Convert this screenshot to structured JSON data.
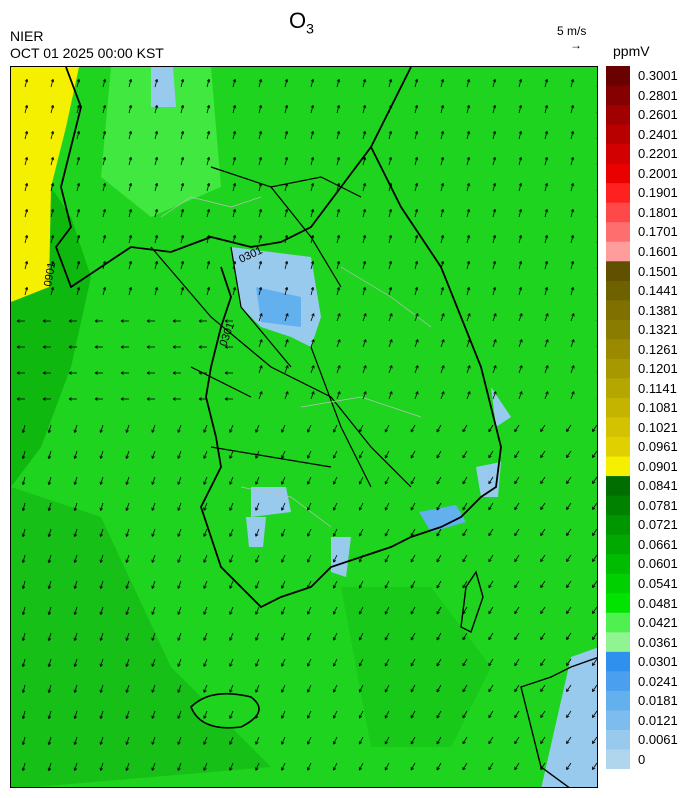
{
  "header": {
    "title_main": "O",
    "title_sub": "3",
    "agency": "NIER",
    "datetime": "OCT 01 2025 00:00 KST",
    "wind_reference": "5 m/s",
    "unit": "ppmV"
  },
  "contour_labels": [
    "0901",
    "0301",
    "0301"
  ],
  "legend": {
    "labels": [
      "0.3001",
      "0.2801",
      "0.2601",
      "0.2401",
      "0.2201",
      "0.2001",
      "0.1901",
      "0.1801",
      "0.1701",
      "0.1601",
      "0.1501",
      "0.1441",
      "0.1381",
      "0.1321",
      "0.1261",
      "0.1201",
      "0.1141",
      "0.1081",
      "0.1021",
      "0.0961",
      "0.0901",
      "0.0841",
      "0.0781",
      "0.0721",
      "0.0661",
      "0.0601",
      "0.0541",
      "0.0481",
      "0.0421",
      "0.0361",
      "0.0301",
      "0.0241",
      "0.0181",
      "0.0121",
      "0.0061",
      "0"
    ],
    "colors": [
      "#6b0000",
      "#850000",
      "#a00000",
      "#b80000",
      "#d20000",
      "#eb0000",
      "#ff2020",
      "#ff4848",
      "#ff6e6e",
      "#ff9c9c",
      "#605000",
      "#6e6200",
      "#807000",
      "#8a7c00",
      "#9a8a00",
      "#a89800",
      "#b6a600",
      "#c4b400",
      "#d2c200",
      "#e0d000",
      "#f5f000",
      "#006e00",
      "#008200",
      "#009600",
      "#00a800",
      "#00bc00",
      "#00d000",
      "#00e400",
      "#50f050",
      "#90f490",
      "#3090ee",
      "#4aa0ee",
      "#62b0ee",
      "#7cbcee",
      "#98caee",
      "#b0d6ee"
    ]
  }
}
